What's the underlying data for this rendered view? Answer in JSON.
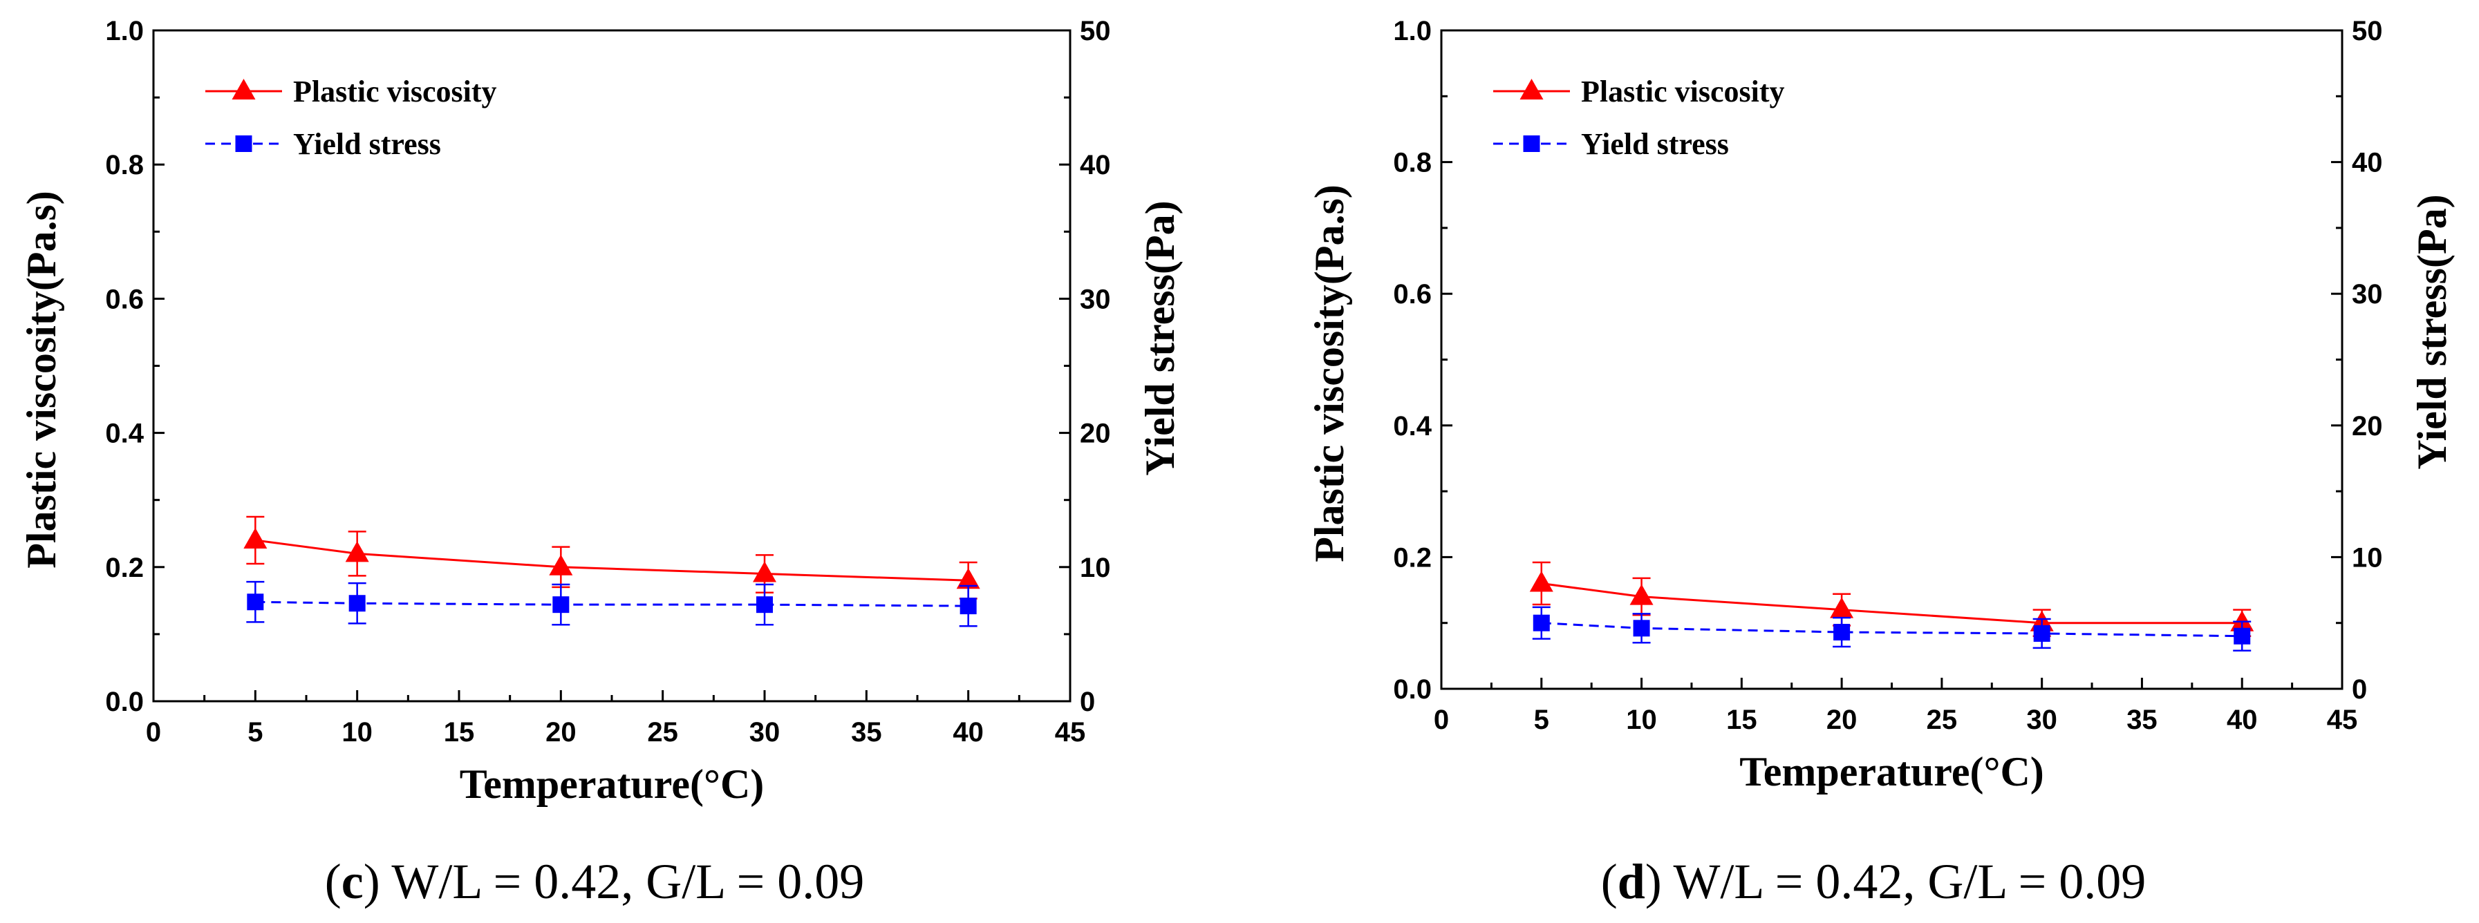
{
  "chart_data": [
    {
      "type": "line",
      "panel_letter": "c",
      "caption_rest": " W/L = 0.42, G/L = 0.09",
      "caption_open": "(",
      "caption_close": ")",
      "xlabel": "Temperature(°C)",
      "ylabel_left": "Plastic viscosity(Pa.s)",
      "ylabel_right": "Yield stress(Pa)",
      "xlim": [
        0,
        45
      ],
      "ylim_left": [
        0.0,
        1.0
      ],
      "ylim_right": [
        0,
        50
      ],
      "x_ticks": [
        "0",
        "5",
        "10",
        "15",
        "20",
        "25",
        "30",
        "35",
        "40",
        "45"
      ],
      "y_left_ticks": [
        "0.0",
        "0.2",
        "0.4",
        "0.6",
        "0.8",
        "1.0"
      ],
      "y_right_ticks": [
        "0",
        "10",
        "20",
        "30",
        "40",
        "50"
      ],
      "x": [
        5,
        10,
        20,
        30,
        40
      ],
      "series": [
        {
          "name": "Plastic viscosity",
          "axis": "left",
          "color": "#ff0000",
          "marker": "triangle",
          "dash": false,
          "values": [
            0.24,
            0.22,
            0.2,
            0.19,
            0.18
          ],
          "errors": [
            0.035,
            0.033,
            0.03,
            0.028,
            0.027
          ]
        },
        {
          "name": "Yield stress",
          "axis": "right",
          "color": "#0000ff",
          "marker": "square",
          "dash": true,
          "values": [
            7.4,
            7.3,
            7.2,
            7.2,
            7.1
          ],
          "errors": [
            1.5,
            1.5,
            1.5,
            1.5,
            1.5
          ]
        }
      ]
    },
    {
      "type": "line",
      "panel_letter": "d",
      "caption_rest": " W/L = 0.42, G/L = 0.09",
      "caption_open": "(",
      "caption_close": ")",
      "xlabel": "Temperature(°C)",
      "ylabel_left": "Plastic viscosity(Pa.s)",
      "ylabel_right": "Yield stress(Pa)",
      "xlim": [
        0,
        45
      ],
      "ylim_left": [
        0.0,
        1.0
      ],
      "ylim_right": [
        0,
        50
      ],
      "x_ticks": [
        "0",
        "5",
        "10",
        "15",
        "20",
        "25",
        "30",
        "35",
        "40",
        "45"
      ],
      "y_left_ticks": [
        "0.0",
        "0.2",
        "0.4",
        "0.6",
        "0.8",
        "1.0"
      ],
      "y_right_ticks": [
        "0",
        "10",
        "20",
        "30",
        "40",
        "50"
      ],
      "x": [
        5,
        10,
        20,
        30,
        40
      ],
      "series": [
        {
          "name": "Plastic viscosity",
          "axis": "left",
          "color": "#ff0000",
          "marker": "triangle",
          "dash": false,
          "values": [
            0.16,
            0.14,
            0.12,
            0.1,
            0.1
          ],
          "errors": [
            0.032,
            0.028,
            0.024,
            0.02,
            0.02
          ]
        },
        {
          "name": "Yield stress",
          "axis": "right",
          "color": "#0000ff",
          "marker": "square",
          "dash": true,
          "values": [
            5.0,
            4.6,
            4.3,
            4.2,
            4.0
          ],
          "errors": [
            1.2,
            1.1,
            1.1,
            1.1,
            1.1
          ]
        }
      ]
    }
  ]
}
